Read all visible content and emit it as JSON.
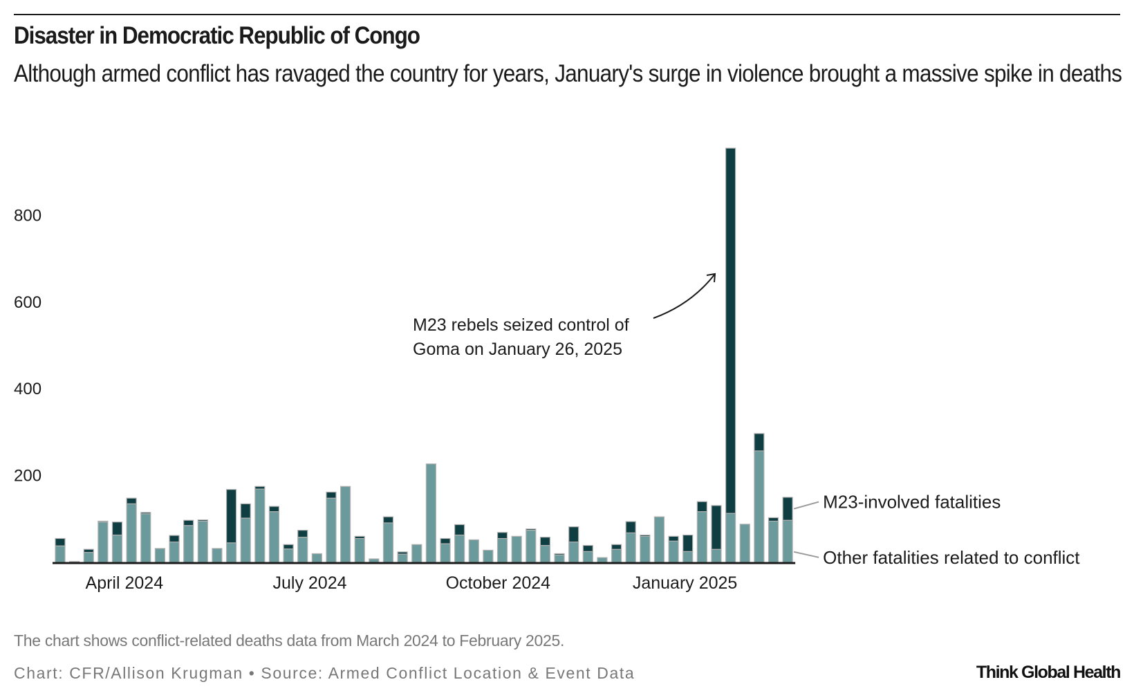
{
  "header": {
    "title": "Disaster in Democratic Republic of Congo",
    "subtitle": "Although armed conflict has ravaged the country for years, January's surge in violence brought a massive spike in deaths"
  },
  "footer": {
    "note": "The chart shows conflict-related deaths data from March 2024 to February 2025.",
    "source": "Chart: CFR/Allison Krugman • Source: Armed Conflict Location & Event Data",
    "logo": "Think Global Health"
  },
  "colors": {
    "other": "#6a9a9b",
    "m23": "#0e3e42",
    "bar_stroke": "#b0b0b0",
    "axis": "#1a1a1a",
    "leader": "#999999"
  },
  "chart_data": {
    "type": "bar",
    "stacked": true,
    "title": "Disaster in Democratic Republic of Congo",
    "subtitle": "Although armed conflict has ravaged the country for years, January's surge in violence brought a massive spike in deaths",
    "xlabel": "",
    "ylabel": "",
    "interval": "weekly",
    "ylim": [
      0,
      960
    ],
    "yticks": [
      200,
      400,
      600,
      800
    ],
    "grid": false,
    "x_tick_labels": [
      {
        "label": "April 2024",
        "index": 4.5
      },
      {
        "label": "July 2024",
        "index": 17.5
      },
      {
        "label": "October 2024",
        "index": 30.7
      },
      {
        "label": "January 2025",
        "index": 43.8
      }
    ],
    "legend_placement": "right-inline",
    "series": [
      {
        "name": "Other fatalities related to conflict",
        "values": [
          38,
          2,
          23,
          93,
          63,
          135,
          112,
          32,
          47,
          85,
          95,
          32,
          45,
          102,
          169,
          117,
          31,
          58,
          20,
          148,
          175,
          55,
          8,
          91,
          19,
          41,
          227,
          43,
          63,
          52,
          28,
          55,
          60,
          74,
          39,
          17,
          47,
          25,
          11,
          30,
          68,
          60,
          105,
          49,
          25,
          117,
          30,
          113,
          88,
          257,
          95,
          97
        ]
      },
      {
        "name": "M23-involved fatalities",
        "values": [
          17,
          0,
          7,
          2,
          30,
          13,
          3,
          0,
          15,
          12,
          3,
          0,
          123,
          33,
          6,
          12,
          10,
          16,
          0,
          14,
          0,
          5,
          0,
          14,
          5,
          0,
          0,
          12,
          24,
          0,
          0,
          14,
          0,
          3,
          19,
          3,
          35,
          14,
          0,
          11,
          26,
          3,
          0,
          11,
          38,
          23,
          101,
          842,
          0,
          40,
          8,
          53
        ]
      }
    ],
    "annotations": [
      {
        "text_lines": [
          "M23 rebels seized control of",
          "Goma on January 26, 2025"
        ],
        "points_to_index": 47
      }
    ]
  }
}
